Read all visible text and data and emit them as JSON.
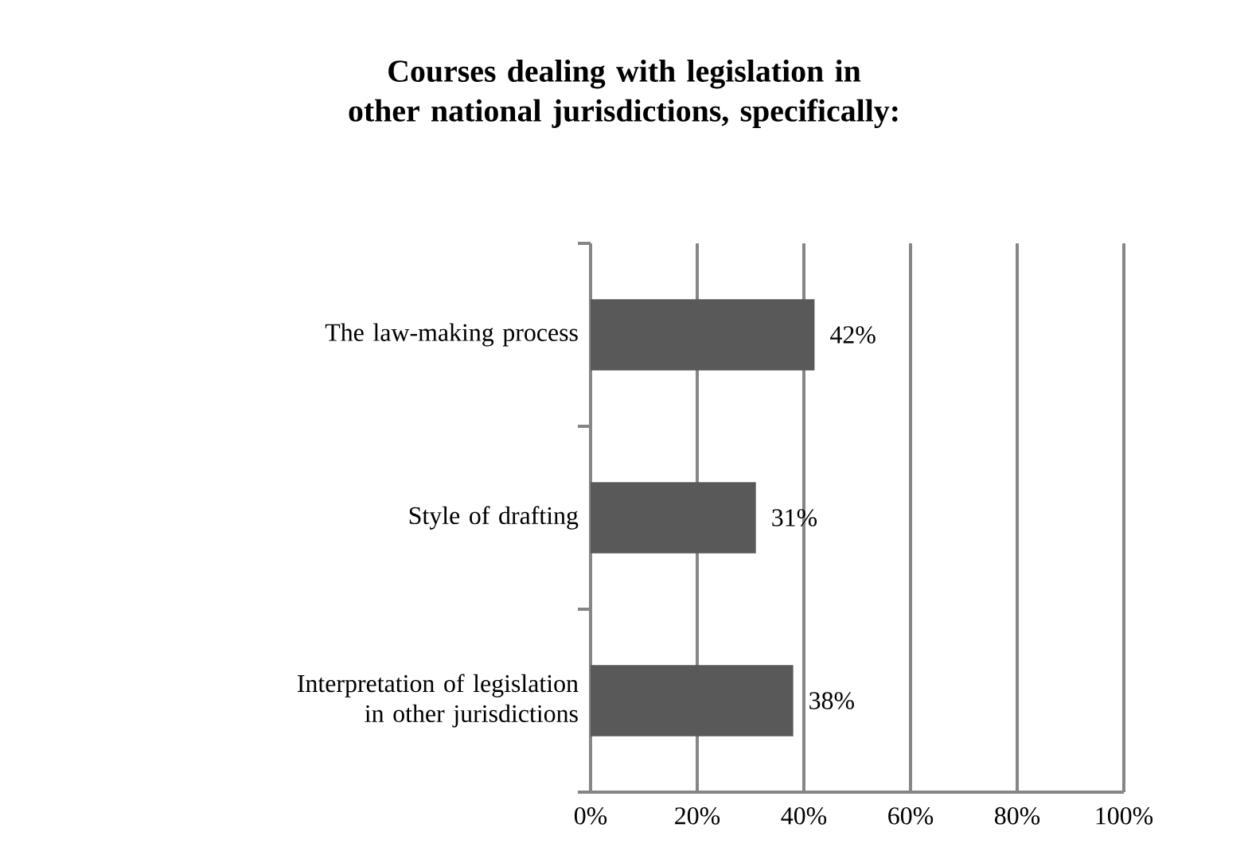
{
  "chart_data": {
    "type": "bar",
    "orientation": "horizontal",
    "title": "Courses dealing with legislation in other national jurisdictions, specifically:",
    "categories": [
      "The law-making process",
      "Style of drafting",
      "Interpretation  of legislation in other jurisdictions"
    ],
    "values": [
      42,
      31,
      38
    ],
    "value_labels": [
      "42%",
      "31%",
      "38%"
    ],
    "color": "#595959",
    "xlim": [
      0,
      100
    ],
    "xticks": [
      {
        "value": 0,
        "label": "0%"
      },
      {
        "value": 20,
        "label": "20%"
      },
      {
        "value": 40,
        "label": "40%"
      },
      {
        "value": 60,
        "label": "60%"
      },
      {
        "value": 80,
        "label": "80%"
      },
      {
        "value": 100,
        "label": "100%"
      }
    ],
    "grid": "x"
  }
}
